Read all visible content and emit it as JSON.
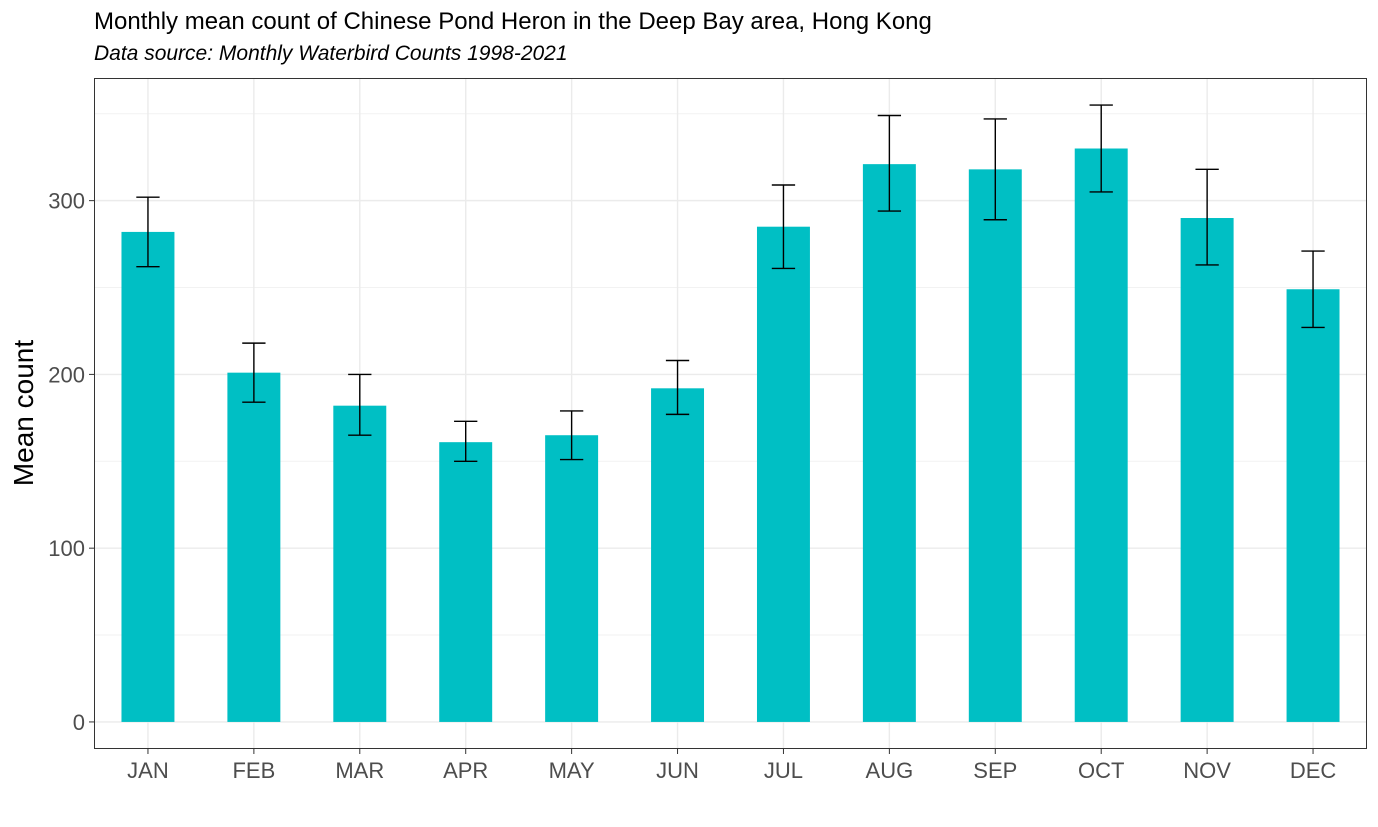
{
  "chart_data": {
    "type": "bar",
    "title": "Monthly mean count of Chinese Pond Heron in the Deep Bay area, Hong Kong",
    "subtitle": "Data source: Monthly Waterbird Counts 1998-2021",
    "xlabel": "",
    "ylabel": "Mean count",
    "ylim": [
      -15,
      370
    ],
    "yticks": [
      0,
      100,
      200,
      300
    ],
    "grid": true,
    "legend": "none",
    "bar_color": "#00BFC4",
    "categories": [
      "JAN",
      "FEB",
      "MAR",
      "APR",
      "MAY",
      "JUN",
      "JUL",
      "AUG",
      "SEP",
      "OCT",
      "NOV",
      "DEC"
    ],
    "values": [
      282,
      201,
      182,
      161,
      165,
      192,
      285,
      321,
      318,
      330,
      290,
      249
    ],
    "error_low": [
      262,
      184,
      165,
      150,
      151,
      177,
      261,
      294,
      289,
      305,
      263,
      227
    ],
    "error_high": [
      302,
      218,
      200,
      173,
      179,
      208,
      309,
      349,
      347,
      355,
      318,
      271
    ]
  }
}
